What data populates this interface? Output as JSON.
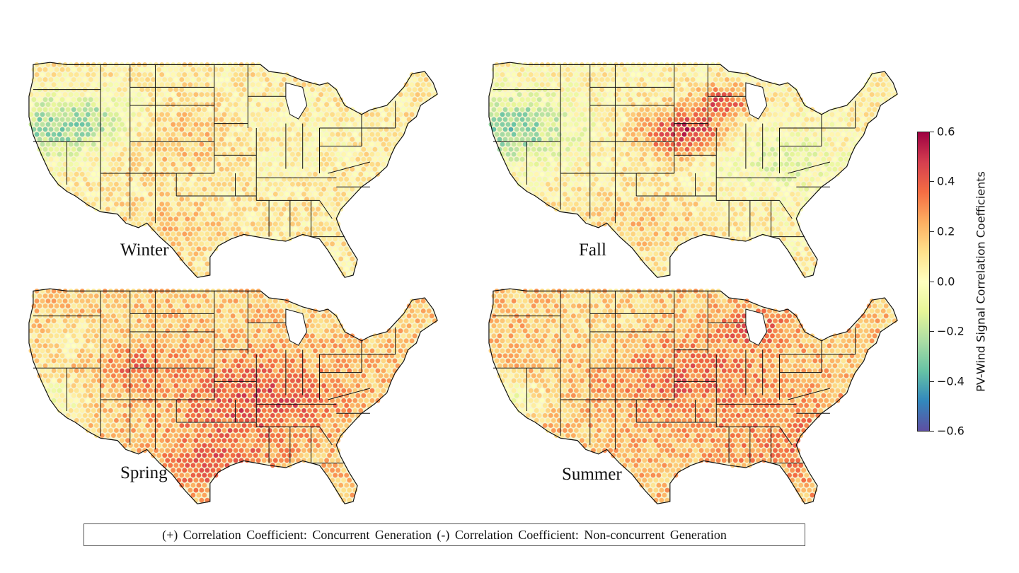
{
  "panels": [
    {
      "label": "Winter",
      "anchor": "top-left",
      "regime": "winter"
    },
    {
      "label": "Fall",
      "anchor": "top-right",
      "regime": "fall"
    },
    {
      "label": "Spring",
      "anchor": "bottom-left",
      "regime": "spring"
    },
    {
      "label": "Summer",
      "anchor": "bottom-right",
      "regime": "summer"
    }
  ],
  "colorbar": {
    "title": "PV-Wind Signal Correlation Coefficients",
    "min": -0.6,
    "max": 0.6,
    "ticks": [
      "0.6",
      "0.4",
      "0.2",
      "0.0",
      "−0.2",
      "−0.4",
      "−0.6"
    ],
    "colormap": "Spectral_r",
    "colors": [
      "#5e4fa2",
      "#3288bd",
      "#66c2a5",
      "#abdda4",
      "#e6f598",
      "#ffffbf",
      "#fee08b",
      "#fdae61",
      "#f46d43",
      "#d53e4f",
      "#9e0142"
    ]
  },
  "legend": {
    "text": "(+) Correlation Coefficient:  Concurrent Generation (-) Correlation Coefficient:  Non-concurrent Generation"
  }
}
